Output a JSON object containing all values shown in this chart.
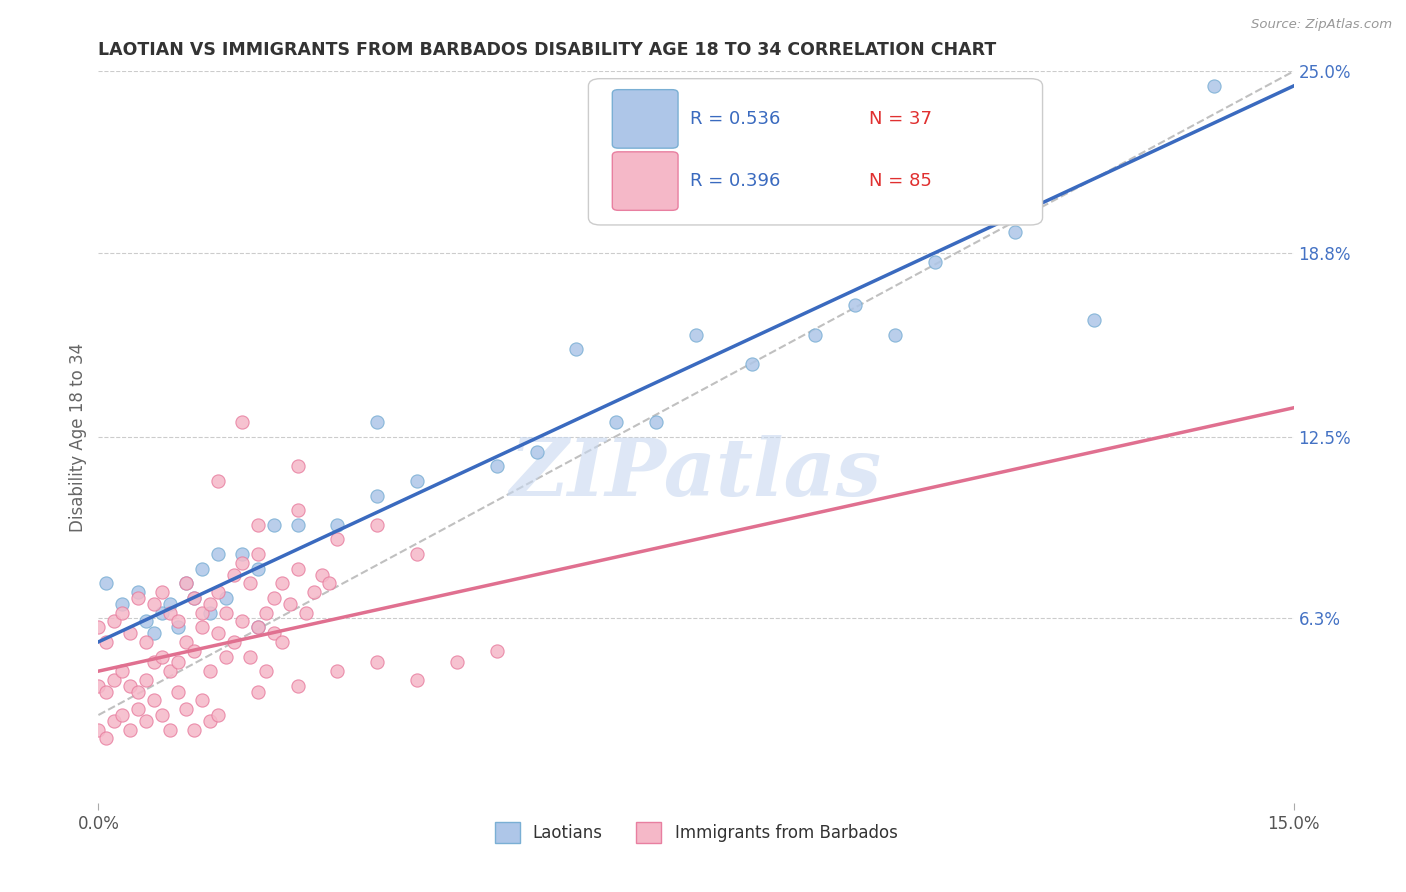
{
  "title": "LAOTIAN VS IMMIGRANTS FROM BARBADOS DISABILITY AGE 18 TO 34 CORRELATION CHART",
  "source": "Source: ZipAtlas.com",
  "ylabel": "Disability Age 18 to 34",
  "x_min": 0.0,
  "x_max": 0.15,
  "y_min": 0.0,
  "y_max": 0.25,
  "y_ticks": [
    0.063,
    0.125,
    0.188,
    0.25
  ],
  "y_tick_labels": [
    "6.3%",
    "12.5%",
    "18.8%",
    "25.0%"
  ],
  "grid_color": "#cccccc",
  "background_color": "#ffffff",
  "laotian_color": "#aec6e8",
  "laotian_edge_color": "#7aafd4",
  "barbados_color": "#f5b8c8",
  "barbados_edge_color": "#e87fa0",
  "laotian_line_color": "#3a6abf",
  "barbados_line_color": "#e07090",
  "ref_line_color": "#c0c0c0",
  "watermark": "ZIPatlas",
  "watermark_color": "#c8d8f0",
  "legend_R_color": "#3a6abf",
  "legend_N_color": "#e03030",
  "laotian_x": [
    0.001,
    0.003,
    0.005,
    0.006,
    0.007,
    0.008,
    0.009,
    0.01,
    0.011,
    0.012,
    0.013,
    0.014,
    0.015,
    0.016,
    0.018,
    0.02,
    0.022,
    0.025,
    0.03,
    0.035,
    0.04,
    0.05,
    0.055,
    0.065,
    0.07,
    0.082,
    0.09,
    0.095,
    0.1,
    0.105,
    0.115,
    0.125,
    0.035,
    0.02,
    0.06,
    0.075,
    0.14
  ],
  "laotian_y": [
    0.075,
    0.068,
    0.072,
    0.062,
    0.058,
    0.065,
    0.068,
    0.06,
    0.075,
    0.07,
    0.08,
    0.065,
    0.085,
    0.07,
    0.085,
    0.08,
    0.095,
    0.095,
    0.095,
    0.105,
    0.11,
    0.115,
    0.12,
    0.13,
    0.13,
    0.15,
    0.16,
    0.17,
    0.16,
    0.185,
    0.195,
    0.165,
    0.13,
    0.06,
    0.155,
    0.16,
    0.245
  ],
  "barbados_x": [
    0.0,
    0.001,
    0.002,
    0.003,
    0.004,
    0.005,
    0.006,
    0.007,
    0.008,
    0.009,
    0.01,
    0.011,
    0.012,
    0.013,
    0.014,
    0.015,
    0.016,
    0.017,
    0.018,
    0.019,
    0.02,
    0.021,
    0.022,
    0.023,
    0.024,
    0.025,
    0.026,
    0.027,
    0.028,
    0.029,
    0.0,
    0.001,
    0.002,
    0.003,
    0.004,
    0.005,
    0.006,
    0.007,
    0.008,
    0.009,
    0.01,
    0.011,
    0.012,
    0.013,
    0.014,
    0.015,
    0.016,
    0.017,
    0.018,
    0.019,
    0.02,
    0.021,
    0.022,
    0.023,
    0.0,
    0.001,
    0.002,
    0.003,
    0.004,
    0.005,
    0.006,
    0.007,
    0.008,
    0.009,
    0.01,
    0.011,
    0.012,
    0.013,
    0.014,
    0.015,
    0.02,
    0.025,
    0.03,
    0.035,
    0.04,
    0.045,
    0.05,
    0.015,
    0.02,
    0.025,
    0.03,
    0.035,
    0.04,
    0.018,
    0.025
  ],
  "barbados_y": [
    0.06,
    0.055,
    0.062,
    0.065,
    0.058,
    0.07,
    0.055,
    0.068,
    0.072,
    0.065,
    0.062,
    0.075,
    0.07,
    0.065,
    0.068,
    0.072,
    0.065,
    0.078,
    0.082,
    0.075,
    0.085,
    0.065,
    0.07,
    0.075,
    0.068,
    0.08,
    0.065,
    0.072,
    0.078,
    0.075,
    0.04,
    0.038,
    0.042,
    0.045,
    0.04,
    0.038,
    0.042,
    0.048,
    0.05,
    0.045,
    0.048,
    0.055,
    0.052,
    0.06,
    0.045,
    0.058,
    0.05,
    0.055,
    0.062,
    0.05,
    0.06,
    0.045,
    0.058,
    0.055,
    0.025,
    0.022,
    0.028,
    0.03,
    0.025,
    0.032,
    0.028,
    0.035,
    0.03,
    0.025,
    0.038,
    0.032,
    0.025,
    0.035,
    0.028,
    0.03,
    0.038,
    0.04,
    0.045,
    0.048,
    0.042,
    0.048,
    0.052,
    0.11,
    0.095,
    0.1,
    0.09,
    0.095,
    0.085,
    0.13,
    0.115
  ]
}
